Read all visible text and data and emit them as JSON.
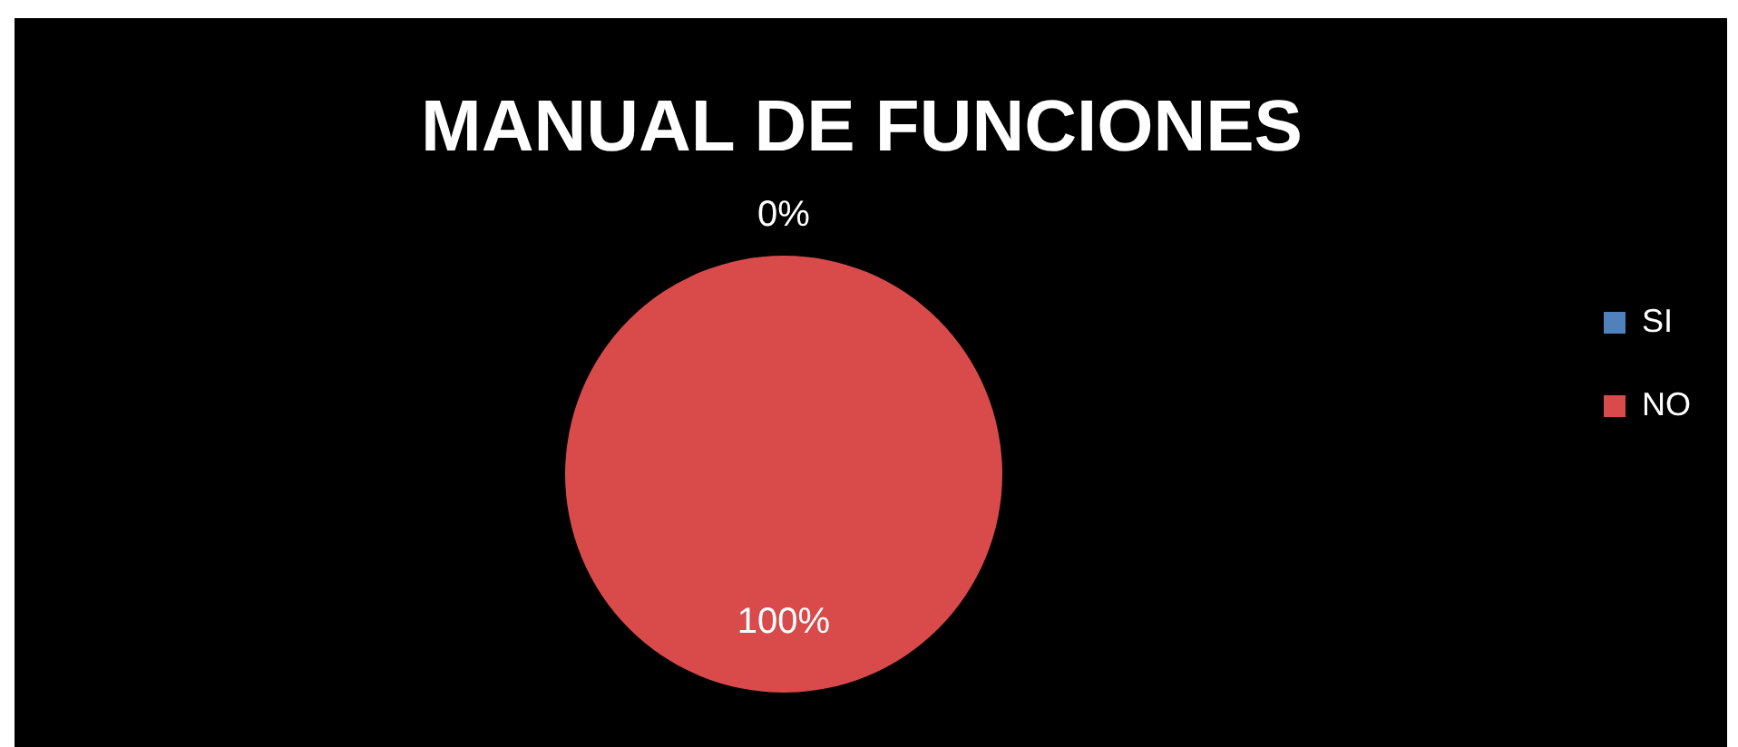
{
  "chart_data": {
    "type": "pie",
    "title": "MANUAL DE FUNCIONES",
    "categories": [
      "SI",
      "NO"
    ],
    "values": [
      0,
      100
    ],
    "colors": [
      "#4f81bd",
      "#d94a4a"
    ],
    "value_labels": [
      "0%",
      "100%"
    ],
    "legend": "right"
  }
}
